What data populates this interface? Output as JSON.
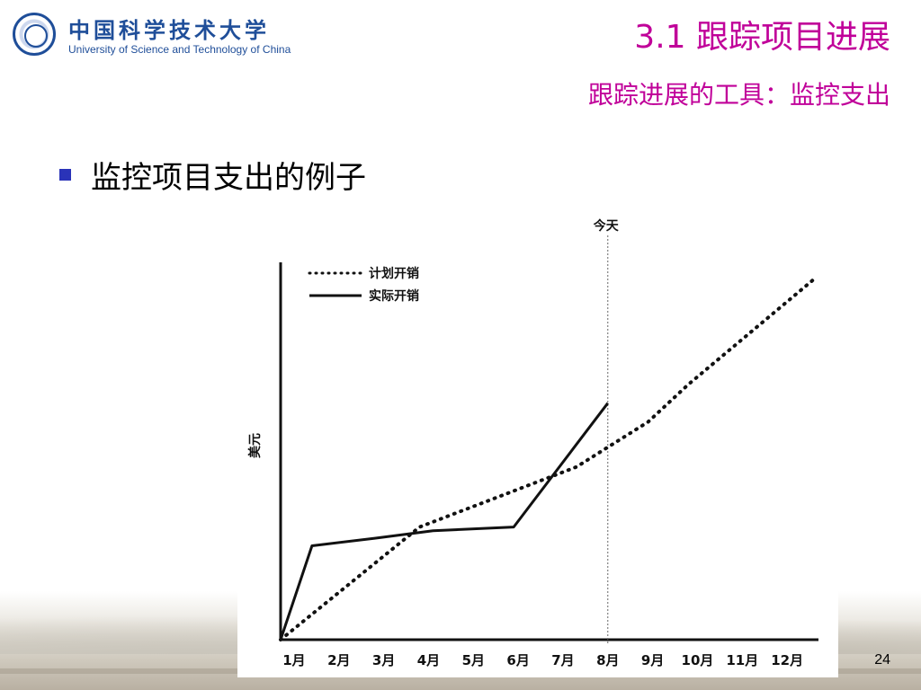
{
  "header": {
    "logo_cn": "中国科学技术大学",
    "logo_en": "University of Science and Technology of China",
    "title": "3.1 跟踪项目进展",
    "subtitle": "跟踪进展的工具：监控支出"
  },
  "bullets": [
    {
      "text": "监控项目支出的例子"
    }
  ],
  "colors": {
    "title": "#c00099",
    "bullet": "#2a33b8",
    "logo": "#1f4e99"
  },
  "chart_data": {
    "type": "line",
    "categories": [
      "1月",
      "2月",
      "3月",
      "4月",
      "5月",
      "6月",
      "7月",
      "8月",
      "9月",
      "10月",
      "11月",
      "12月"
    ],
    "x": [
      1,
      2,
      3,
      4,
      5,
      6,
      7,
      8,
      9,
      10,
      11,
      12
    ],
    "ylabel": "美元",
    "xlabel": "",
    "today_label": "今天",
    "today_x": 8.2,
    "ylim": [
      0,
      100
    ],
    "xlim": [
      0.9,
      12.9
    ],
    "legend_placement": "top-left",
    "series": [
      {
        "name": "计划开销",
        "style": "dotted",
        "x": [
          0.9,
          4,
          7.5,
          9.1,
          10,
          12.8
        ],
        "values": [
          0,
          30,
          46,
          58,
          68,
          96
        ]
      },
      {
        "name": "实际开销",
        "style": "solid",
        "x": [
          0.9,
          1.6,
          3,
          4.3,
          6.1,
          8.2
        ],
        "values": [
          0,
          25,
          27,
          29,
          30,
          63
        ]
      }
    ]
  },
  "footer": {
    "page_number": "24"
  }
}
